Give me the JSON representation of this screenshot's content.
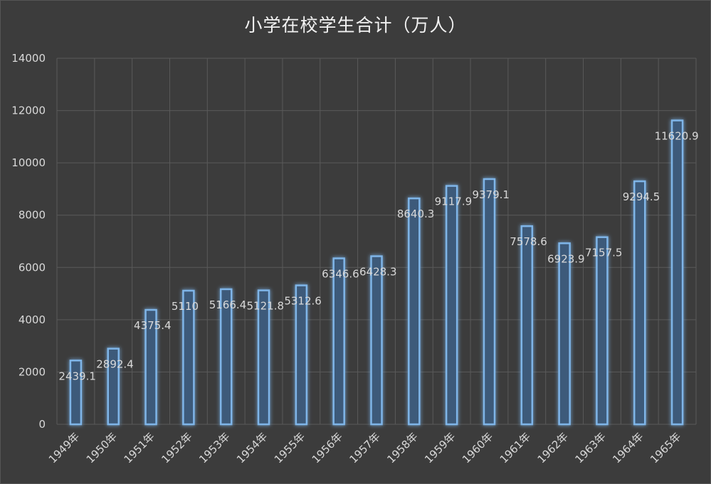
{
  "chart_data": {
    "type": "bar",
    "title": "小学在校学生合计（万人）",
    "xlabel": "",
    "ylabel": "",
    "ylim": [
      0,
      14000
    ],
    "yticks": [
      0,
      2000,
      4000,
      6000,
      8000,
      10000,
      12000,
      14000
    ],
    "grid": true,
    "legend": "none",
    "categories": [
      "1949年",
      "1950年",
      "1951年",
      "1952年",
      "1953年",
      "1954年",
      "1955年",
      "1956年",
      "1957年",
      "1958年",
      "1959年",
      "1960年",
      "1961年",
      "1962年",
      "1963年",
      "1964年",
      "1965年"
    ],
    "values": [
      2439.1,
      2892.4,
      4375.4,
      5110,
      5166.4,
      5121.8,
      5312.6,
      6346.6,
      6428.3,
      8640.3,
      9117.9,
      9379.1,
      7578.6,
      6923.9,
      7157.5,
      9294.5,
      11620.9
    ],
    "data_labels": [
      "2439.1",
      "2892.4",
      "4375.4",
      "5110",
      "5166.4",
      "5121.8",
      "5312.6",
      "6346.6",
      "6428.3",
      "8640.3",
      "9117.9",
      "9379.1",
      "7578.6",
      "6923.9",
      "7157.5",
      "9294.5",
      "11620.9"
    ],
    "colors": {
      "background": "#3c3c3c",
      "bar_fill": "#3d5a7a",
      "bar_stroke": "#7fb5e8",
      "glow": "#4a9ae0",
      "grid": "#5a5a5a",
      "text": "#d9d9d9"
    }
  }
}
